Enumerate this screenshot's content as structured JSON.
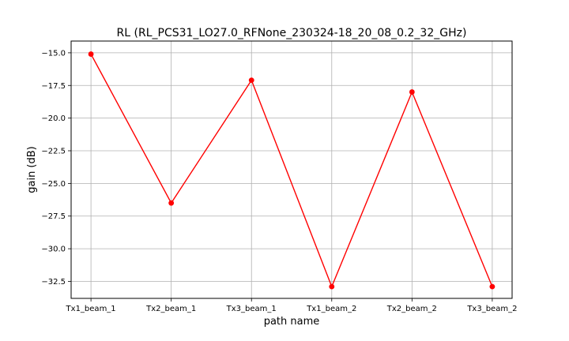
{
  "chart_data": {
    "type": "line",
    "title": "RL (RL_PCS31_LO27.0_RFNone_230324-18_20_08_0.2_32_GHz)",
    "xlabel": "path name",
    "ylabel": "gain (dB)",
    "categories": [
      "Tx1_beam_1",
      "Tx2_beam_1",
      "Tx3_beam_1",
      "Tx1_beam_2",
      "Tx2_beam_2",
      "Tx3_beam_2"
    ],
    "series": [
      {
        "values": [
          -15.1,
          -26.5,
          -17.1,
          -32.9,
          -18.0,
          -32.9
        ]
      }
    ],
    "ylim": [
      -33.8,
      -14.1
    ],
    "yticks": [
      -15.0,
      -17.5,
      -20.0,
      -22.5,
      -25.0,
      -27.5,
      -30.0,
      -32.5
    ],
    "ytick_labels": [
      "−15.0",
      "−17.5",
      "−20.0",
      "−22.5",
      "−25.0",
      "−27.5",
      "−30.0",
      "−32.5"
    ],
    "grid": true,
    "colors": {
      "line": "#ff0000",
      "marker": "#ff0000",
      "grid": "#b0b0b0",
      "axes": "#000000"
    }
  }
}
